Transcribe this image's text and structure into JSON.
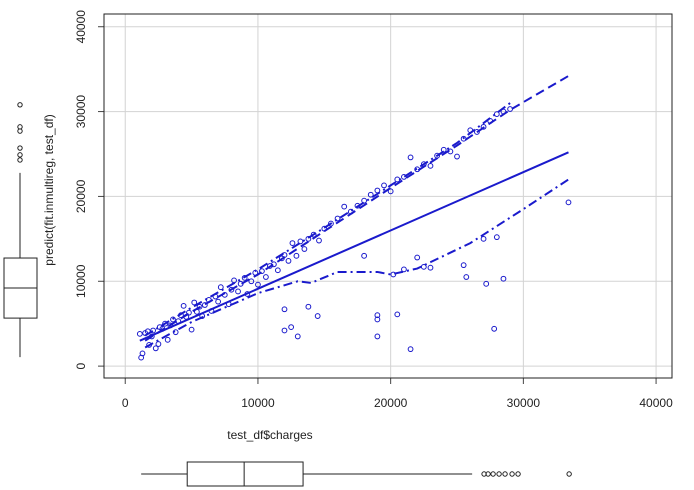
{
  "chart_data": {
    "type": "scatter",
    "x_label": "test_df$charges",
    "y_label": "predict(fit.inmultireg, test_df)",
    "xlim": [
      -1600,
      41200
    ],
    "ylim": [
      -1400,
      41500
    ],
    "xticks": [
      0,
      10000,
      20000,
      30000,
      40000
    ],
    "yticks": [
      0,
      10000,
      20000,
      30000,
      40000
    ],
    "grid": true,
    "color": "#1a1acc",
    "x": [
      1100,
      1200,
      1300,
      1500,
      1700,
      1800,
      2000,
      2100,
      2300,
      2500,
      2600,
      2800,
      3000,
      3200,
      3400,
      3600,
      3800,
      4000,
      4200,
      4400,
      4600,
      4800,
      5000,
      5200,
      5400,
      5600,
      5800,
      6000,
      6300,
      6500,
      6800,
      7000,
      7200,
      7500,
      7800,
      8000,
      8200,
      8500,
      8700,
      9000,
      9200,
      9500,
      9800,
      10000,
      10300,
      10600,
      10900,
      11200,
      11500,
      11800,
      12000,
      12300,
      12600,
      12900,
      13200,
      13500,
      13800,
      14200,
      14600,
      15000,
      15500,
      16000,
      16500,
      17000,
      17500,
      18000,
      18500,
      19000,
      19500,
      20000,
      20500,
      21000,
      21500,
      22000,
      22500,
      23000,
      23500,
      24000,
      24500,
      25000,
      25500,
      26000,
      26500,
      27000,
      27500,
      28000,
      28500,
      29000,
      12000,
      12500,
      12000,
      13000,
      13800,
      14500,
      18000,
      19000,
      19000,
      19000,
      20200,
      20500,
      21000,
      21500,
      22000,
      22500,
      23000,
      25500,
      25700,
      27000,
      27200,
      27800,
      28000,
      28500,
      33400
    ],
    "y": [
      3800,
      1000,
      1500,
      3900,
      4100,
      2500,
      3500,
      4200,
      2100,
      2600,
      4600,
      4400,
      5000,
      3100,
      4800,
      5500,
      4000,
      5300,
      6000,
      7100,
      5800,
      6300,
      4300,
      7500,
      6400,
      7000,
      5900,
      7200,
      7800,
      6500,
      8200,
      7600,
      9300,
      8400,
      7300,
      9000,
      10100,
      8800,
      9700,
      10400,
      8500,
      10000,
      11000,
      9600,
      11200,
      10500,
      11800,
      12000,
      11300,
      12700,
      13100,
      12400,
      14500,
      13000,
      14700,
      13800,
      15000,
      15500,
      14800,
      16200,
      16800,
      17400,
      18800,
      18200,
      18900,
      19500,
      20200,
      20700,
      21300,
      20600,
      22000,
      22300,
      24600,
      23200,
      23800,
      23600,
      24800,
      25500,
      25300,
      24700,
      26800,
      27800,
      27600,
      28200,
      28900,
      29700,
      30000,
      30300,
      4200,
      4600,
      6700,
      3500,
      7000,
      5900,
      13000,
      3500,
      6000,
      5500,
      10800,
      6100,
      11400,
      2000,
      12800,
      11700,
      11600,
      11900,
      10500,
      15000,
      9700,
      4400,
      15200,
      10300,
      19300
    ],
    "fit_lines": [
      {
        "style": "solid",
        "x": [
          1100,
          33400
        ],
        "y": [
          3000,
          25200
        ]
      },
      {
        "style": "dashed",
        "x": [
          1500,
          5000,
          10000,
          15000,
          20000,
          25000,
          29000,
          33400
        ],
        "y": [
          3000,
          6400,
          10800,
          15900,
          21000,
          26000,
          30200,
          34200
        ]
      },
      {
        "style": "dashdot",
        "x": [
          1500,
          5000,
          10000,
          15000,
          20000,
          25000,
          29000
        ],
        "y": [
          3600,
          6900,
          11400,
          16300,
          21300,
          26300,
          31000
        ]
      },
      {
        "style": "dashdot",
        "x": [
          1500,
          5000,
          10000,
          13000,
          14000,
          16000,
          19000,
          20000,
          22000,
          26000,
          30000,
          33400
        ],
        "y": [
          2200,
          5200,
          8600,
          10000,
          9800,
          11100,
          11100,
          10800,
          11500,
          14500,
          18500,
          22000
        ]
      }
    ],
    "x_boxplot": {
      "whislo": 1200,
      "q1": 4670,
      "med": 8960,
      "q3": 13400,
      "whishi": 26140,
      "fliers": [
        27040,
        27340,
        27720,
        28170,
        28620,
        29150,
        29600,
        33450
      ]
    },
    "y_boxplot": {
      "whislo": 1060,
      "q1": 5660,
      "med": 9200,
      "q3": 12740,
      "whishi": 22770,
      "fliers": [
        24300,
        24900,
        25700,
        27700,
        28200,
        30800
      ]
    }
  }
}
